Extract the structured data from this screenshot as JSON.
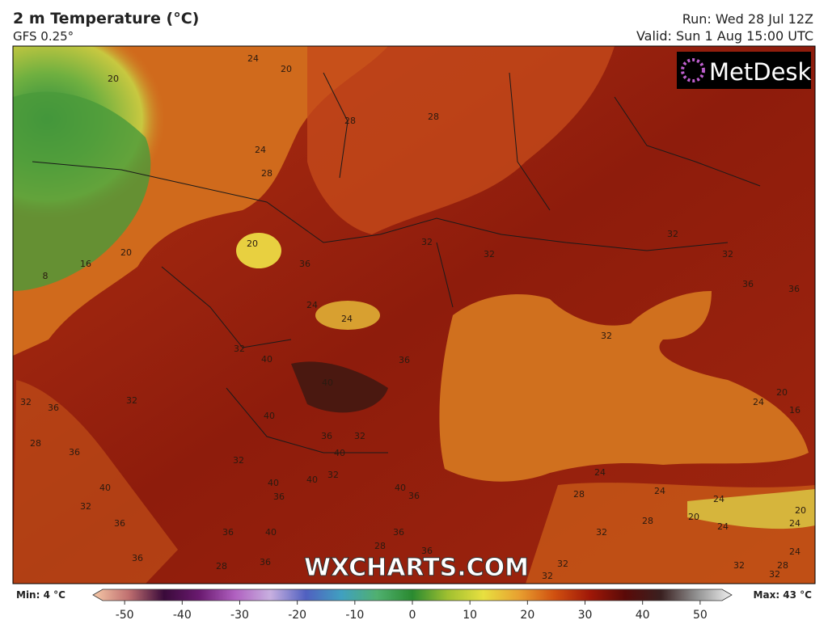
{
  "header": {
    "title": "2 m Temperature (°C)",
    "model": "GFS 0.25°",
    "run": "Run: Wed 28 Jul 12Z",
    "valid": "Valid: Sun 1 Aug 15:00 UTC"
  },
  "logo": "MetDesk",
  "watermark": "WXCHARTS.COM",
  "contour_labels": [
    20,
    24,
    20,
    28,
    28,
    24,
    28,
    20,
    16,
    20,
    8,
    36,
    32,
    32,
    32,
    32,
    36,
    36,
    24,
    24,
    32,
    40,
    36,
    40,
    32,
    32,
    36,
    32,
    40,
    36,
    32,
    40,
    32,
    28,
    36,
    40,
    32,
    36,
    40,
    40,
    32,
    36,
    40,
    36,
    40,
    36,
    36,
    36,
    24,
    28,
    24,
    24,
    20,
    20,
    24,
    32,
    28,
    24,
    24,
    36,
    28,
    36,
    32,
    32,
    32,
    28,
    32,
    20,
    24,
    16,
    28
  ],
  "colorbar": {
    "min_label": "Min: 4 °C",
    "max_label": "Max: 43 °C",
    "range": [
      -55.5,
      55.5
    ],
    "ticks": [
      -50,
      -40,
      -30,
      -20,
      -10,
      0,
      10,
      20,
      30,
      40,
      50
    ],
    "colors": [
      "#f6c9a8",
      "#c07070",
      "#3a0a3a",
      "#6a1a70",
      "#b060c0",
      "#c8b0e0",
      "#5060c0",
      "#40a0c0",
      "#50b070",
      "#2a8a30",
      "#a0c030",
      "#e8e040",
      "#e8a030",
      "#d05010",
      "#a01808",
      "#5a0a08",
      "#3a2020",
      "#909090",
      "#f0f0f0"
    ]
  }
}
